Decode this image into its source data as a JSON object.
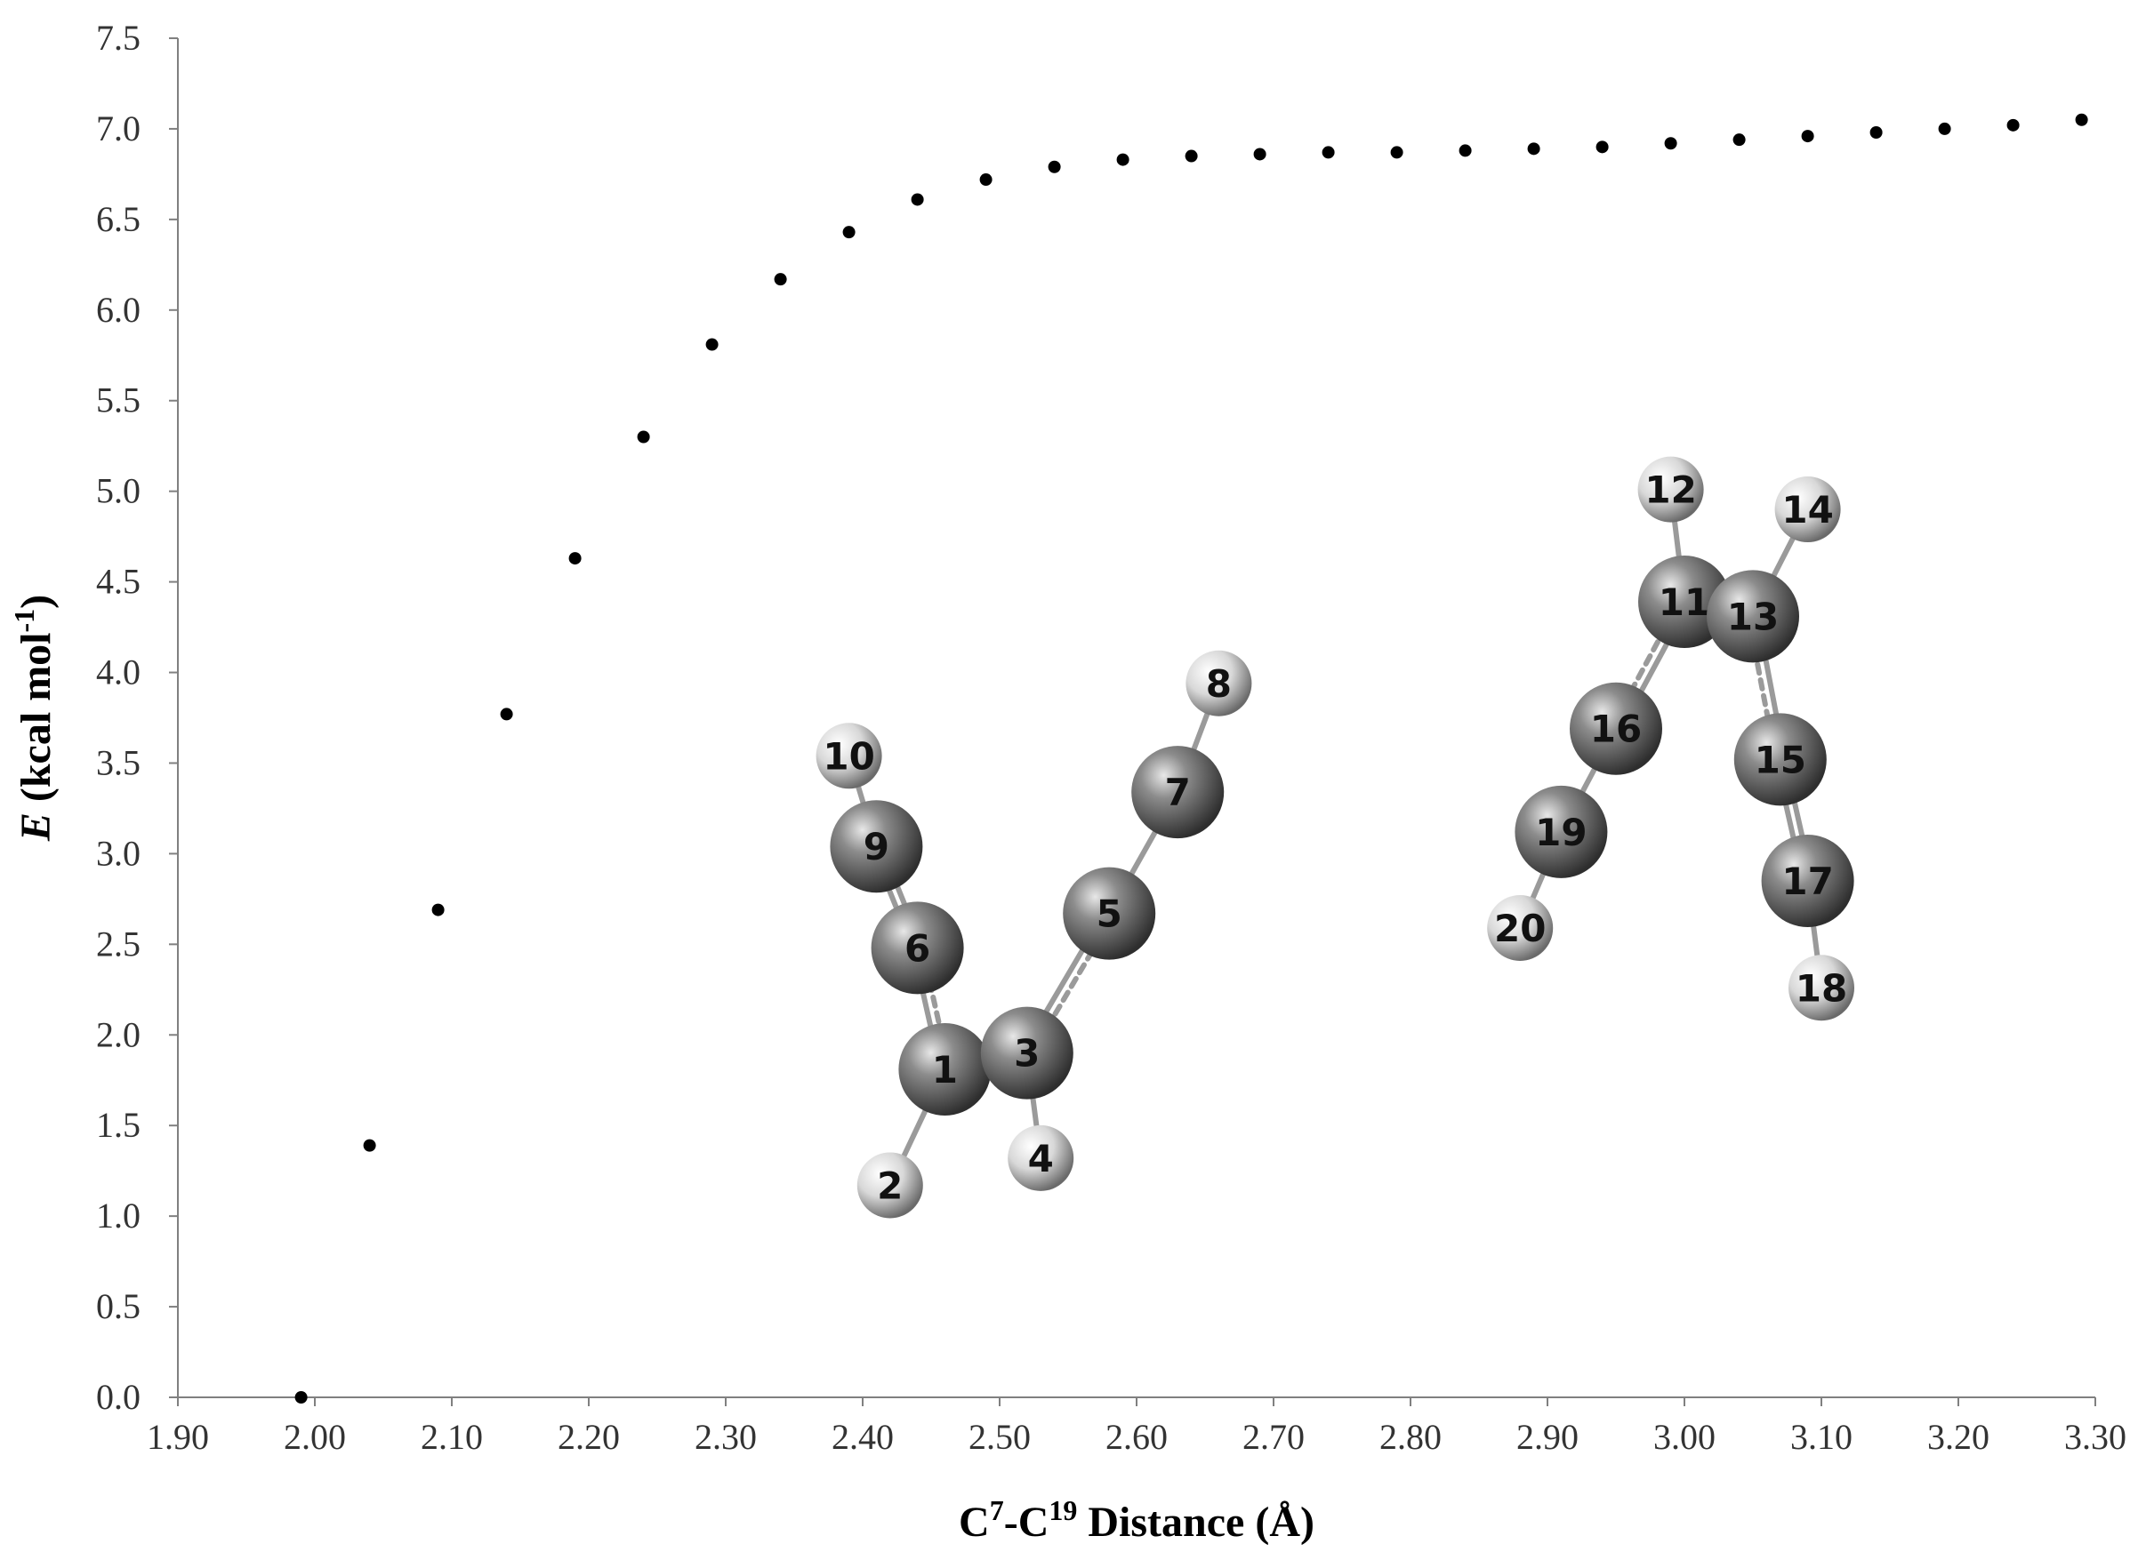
{
  "chart_data": {
    "type": "scatter",
    "title": "",
    "xlabel": {
      "main": "C",
      "sup1": "7",
      "mid": "-C",
      "sup2": "19",
      "rest": " Distance (Å)"
    },
    "ylabel": {
      "italic": "E",
      "rest": " (kcal mol",
      "sup": "-1",
      "close": ")"
    },
    "xlim": [
      1.9,
      3.3
    ],
    "ylim": [
      0.0,
      7.5
    ],
    "x_ticks": [
      "1.90",
      "2.00",
      "2.10",
      "2.20",
      "2.30",
      "2.40",
      "2.50",
      "2.60",
      "2.70",
      "2.80",
      "2.90",
      "3.00",
      "3.10",
      "3.20",
      "3.30"
    ],
    "y_ticks": [
      "0.0",
      "0.5",
      "1.0",
      "1.5",
      "2.0",
      "2.5",
      "3.0",
      "3.5",
      "4.0",
      "4.5",
      "5.0",
      "5.5",
      "6.0",
      "6.5",
      "7.0",
      "7.5"
    ],
    "grid": false,
    "legend": "none",
    "marker_color": "#000000",
    "series": [
      {
        "x": [
          1.99,
          2.04,
          2.09,
          2.14,
          2.19,
          2.24,
          2.29,
          2.34,
          2.39,
          2.44,
          2.49,
          2.54,
          2.59,
          2.64,
          2.69,
          2.74,
          2.79,
          2.84,
          2.89,
          2.94,
          2.99,
          3.04,
          3.09,
          3.14,
          3.19,
          3.24,
          3.29
        ],
        "y": [
          0.0,
          1.39,
          2.69,
          3.77,
          4.63,
          5.3,
          5.81,
          6.17,
          6.43,
          6.61,
          6.72,
          6.79,
          6.83,
          6.85,
          6.86,
          6.87,
          6.87,
          6.88,
          6.89,
          6.9,
          6.92,
          6.94,
          6.96,
          6.98,
          7.0,
          7.02,
          7.05
        ]
      }
    ]
  },
  "inset": {
    "atoms": [
      {
        "id": "1",
        "type": "C",
        "x": 2.46,
        "y": 1.81
      },
      {
        "id": "2",
        "type": "H",
        "x": 2.42,
        "y": 1.17
      },
      {
        "id": "3",
        "type": "C",
        "x": 2.52,
        "y": 1.9
      },
      {
        "id": "4",
        "type": "H",
        "x": 2.53,
        "y": 1.32
      },
      {
        "id": "5",
        "type": "C",
        "x": 2.58,
        "y": 2.67
      },
      {
        "id": "6",
        "type": "C",
        "x": 2.44,
        "y": 2.48
      },
      {
        "id": "7",
        "type": "C",
        "x": 2.63,
        "y": 3.34
      },
      {
        "id": "8",
        "type": "H",
        "x": 2.66,
        "y": 3.94
      },
      {
        "id": "9",
        "type": "C",
        "x": 2.41,
        "y": 3.04
      },
      {
        "id": "10",
        "type": "H",
        "x": 2.39,
        "y": 3.54
      },
      {
        "id": "11",
        "type": "C",
        "x": 3.0,
        "y": 4.39
      },
      {
        "id": "12",
        "type": "H",
        "x": 2.99,
        "y": 5.01
      },
      {
        "id": "13",
        "type": "C",
        "x": 3.05,
        "y": 4.31
      },
      {
        "id": "14",
        "type": "H",
        "x": 3.09,
        "y": 4.9
      },
      {
        "id": "15",
        "type": "C",
        "x": 3.07,
        "y": 3.52
      },
      {
        "id": "16",
        "type": "C",
        "x": 2.95,
        "y": 3.69
      },
      {
        "id": "17",
        "type": "C",
        "x": 3.09,
        "y": 2.85
      },
      {
        "id": "18",
        "type": "H",
        "x": 3.1,
        "y": 2.26
      },
      {
        "id": "19",
        "type": "C",
        "x": 2.91,
        "y": 3.12
      },
      {
        "id": "20",
        "type": "H",
        "x": 2.88,
        "y": 2.59
      }
    ],
    "bonds": [
      {
        "a": "1",
        "b": "2",
        "style": "single"
      },
      {
        "a": "1",
        "b": "3",
        "style": "partial"
      },
      {
        "a": "1",
        "b": "6",
        "style": "partial"
      },
      {
        "a": "3",
        "b": "4",
        "style": "single"
      },
      {
        "a": "3",
        "b": "5",
        "style": "partial"
      },
      {
        "a": "5",
        "b": "7",
        "style": "single"
      },
      {
        "a": "7",
        "b": "8",
        "style": "single"
      },
      {
        "a": "6",
        "b": "9",
        "style": "double"
      },
      {
        "a": "9",
        "b": "10",
        "style": "single"
      },
      {
        "a": "11",
        "b": "12",
        "style": "single"
      },
      {
        "a": "11",
        "b": "13",
        "style": "single"
      },
      {
        "a": "11",
        "b": "16",
        "style": "partial"
      },
      {
        "a": "13",
        "b": "14",
        "style": "single"
      },
      {
        "a": "13",
        "b": "15",
        "style": "partial"
      },
      {
        "a": "15",
        "b": "17",
        "style": "double"
      },
      {
        "a": "17",
        "b": "18",
        "style": "single"
      },
      {
        "a": "16",
        "b": "19",
        "style": "single"
      },
      {
        "a": "19",
        "b": "20",
        "style": "single"
      }
    ],
    "colors": {
      "carbon": "#6e6e6e",
      "hydrogen": "#e6e6e6",
      "bond": "#9a9a9a"
    }
  }
}
